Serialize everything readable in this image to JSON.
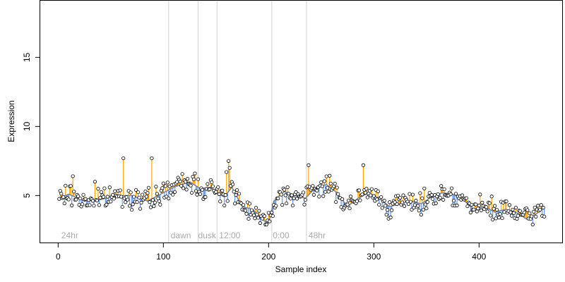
{
  "chart_data": {
    "type": "scatter",
    "title": "",
    "xlabel": "Sample index",
    "ylabel": "Expression",
    "xlim": [
      -17,
      479
    ],
    "ylim": [
      1.6,
      19.1
    ],
    "x_ticks": [
      0,
      100,
      200,
      300,
      400
    ],
    "x_tick_labels": [
      "0",
      "100",
      "200",
      "300",
      "400"
    ],
    "y_ticks": [
      5,
      10,
      15
    ],
    "y_tick_labels": [
      "5",
      "10",
      "15"
    ],
    "grid": false,
    "legend": "none",
    "colors": {
      "above_baseline": "#ffa500",
      "below_baseline": "#6495ed",
      "baseline": "#808080",
      "points_fill": "#ffffff",
      "points_stroke": "#000000",
      "condition_lines": "#d3d3d3",
      "condition_text": "#aaaaaa"
    },
    "condition_lines_x": [
      0,
      105,
      133,
      151,
      203,
      236
    ],
    "condition_labels": [
      {
        "x": 3,
        "label": "24hr"
      },
      {
        "x": 107,
        "label": "dawn"
      },
      {
        "x": 133,
        "label": "dusk"
      },
      {
        "x": 153,
        "label": "12:00"
      },
      {
        "x": 204,
        "label": "0:00"
      },
      {
        "x": 238,
        "label": "48hr"
      }
    ],
    "anchors": [
      [
        1,
        4.8
      ],
      [
        10,
        5.1
      ],
      [
        25,
        4.6
      ],
      [
        40,
        4.7
      ],
      [
        55,
        5.0
      ],
      [
        70,
        5.0
      ],
      [
        85,
        4.6
      ],
      [
        100,
        5.2
      ],
      [
        110,
        5.6
      ],
      [
        125,
        6.0
      ],
      [
        135,
        5.5
      ],
      [
        145,
        5.6
      ],
      [
        150,
        5.2
      ],
      [
        158,
        4.9
      ],
      [
        165,
        5.6
      ],
      [
        175,
        4.2
      ],
      [
        185,
        4.0
      ],
      [
        195,
        3.2
      ],
      [
        200,
        3.0
      ],
      [
        205,
        4.6
      ],
      [
        215,
        5.3
      ],
      [
        225,
        5.0
      ],
      [
        235,
        4.8
      ],
      [
        245,
        5.6
      ],
      [
        255,
        5.8
      ],
      [
        265,
        5.2
      ],
      [
        275,
        4.2
      ],
      [
        285,
        4.8
      ],
      [
        295,
        5.2
      ],
      [
        305,
        4.8
      ],
      [
        315,
        4.2
      ],
      [
        325,
        4.4
      ],
      [
        335,
        4.6
      ],
      [
        345,
        4.4
      ],
      [
        355,
        4.9
      ],
      [
        365,
        5.2
      ],
      [
        375,
        5.1
      ],
      [
        385,
        4.7
      ],
      [
        395,
        4.0
      ],
      [
        405,
        4.2
      ],
      [
        415,
        3.8
      ],
      [
        425,
        4.0
      ],
      [
        435,
        3.8
      ],
      [
        445,
        3.3
      ],
      [
        455,
        3.7
      ],
      [
        462,
        4.2
      ]
    ],
    "spikes": [
      [
        14,
        6.4
      ],
      [
        62,
        7.7
      ],
      [
        89,
        7.7
      ],
      [
        162,
        7.5
      ],
      [
        163,
        7.0
      ],
      [
        238,
        7.2
      ],
      [
        290,
        7.2
      ],
      [
        35,
        6.0
      ],
      [
        160,
        6.7
      ],
      [
        130,
        6.6
      ]
    ],
    "points_count": 462,
    "seed": 7
  }
}
